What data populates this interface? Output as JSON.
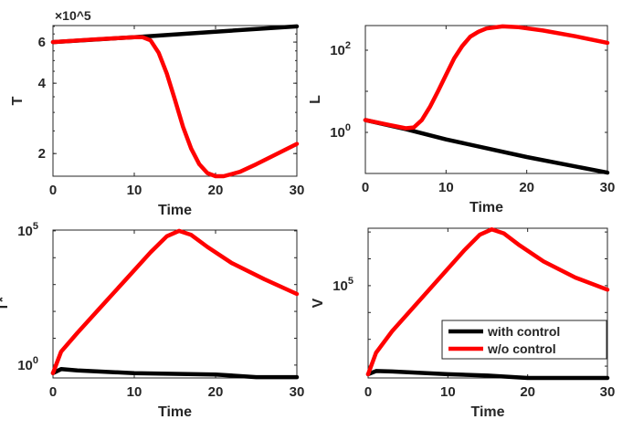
{
  "chart_data": [
    {
      "type": "line",
      "ylabel": "T",
      "xlabel": "Time",
      "yscale": "linear-log",
      "multiplier": "×10^5",
      "xlim": [
        0,
        30
      ],
      "ylim": [
        1.6,
        7.06
      ],
      "xticks": [
        0,
        10,
        20,
        30
      ],
      "yticks": [
        2,
        4,
        6
      ],
      "ytick_labels": [
        "2",
        "4",
        "6"
      ],
      "series": [
        {
          "name": "with control",
          "color": "#000000",
          "x": [
            0,
            10,
            20,
            30
          ],
          "y": [
            6.0,
            6.3,
            6.65,
            7.0
          ]
        },
        {
          "name": "w/o control",
          "color": "#ff0000",
          "x": [
            0,
            5,
            10,
            11,
            12,
            13,
            14,
            15,
            16,
            17,
            18,
            19,
            20,
            21,
            23,
            25,
            27,
            30
          ],
          "y": [
            6.0,
            6.15,
            6.3,
            6.3,
            6.1,
            5.4,
            4.4,
            3.4,
            2.6,
            2.1,
            1.8,
            1.65,
            1.6,
            1.6,
            1.67,
            1.8,
            1.95,
            2.2
          ]
        }
      ]
    },
    {
      "type": "line",
      "ylabel": "L",
      "xlabel": "Time",
      "yscale": "log",
      "xlim": [
        0,
        30
      ],
      "ylim_log10": [
        -1,
        2.6
      ],
      "xticks": [
        0,
        10,
        20,
        30
      ],
      "yticks_log10": [
        0,
        2
      ],
      "series": [
        {
          "name": "with control",
          "color": "#000000",
          "x": [
            0,
            5,
            10,
            20,
            30
          ],
          "y_log10": [
            0.3,
            0.08,
            -0.17,
            -0.6,
            -0.98
          ]
        },
        {
          "name": "w/o control",
          "color": "#ff0000",
          "x": [
            0,
            3,
            5,
            6,
            7,
            8,
            9,
            10,
            11,
            12,
            13,
            14,
            15,
            17,
            19,
            22,
            26,
            30
          ],
          "y_log10": [
            0.3,
            0.18,
            0.1,
            0.12,
            0.3,
            0.62,
            1.0,
            1.4,
            1.8,
            2.1,
            2.33,
            2.45,
            2.53,
            2.58,
            2.56,
            2.48,
            2.34,
            2.18
          ]
        }
      ]
    },
    {
      "type": "line",
      "ylabel": "T*",
      "xlabel": "Time",
      "yscale": "log",
      "xlim": [
        0,
        30
      ],
      "ylim_log10": [
        -0.48,
        5.03
      ],
      "xticks": [
        0,
        10,
        20,
        30
      ],
      "yticks_log10": [
        0,
        5
      ],
      "series": [
        {
          "name": "with control",
          "color": "#000000",
          "x": [
            0,
            1,
            3,
            10,
            20,
            25,
            30
          ],
          "y_log10": [
            -0.3,
            -0.15,
            -0.2,
            -0.3,
            -0.35,
            -0.45,
            -0.45
          ]
        },
        {
          "name": "w/o control",
          "color": "#ff0000",
          "x": [
            0,
            1,
            3,
            6,
            9,
            12,
            14,
            15.5,
            17,
            19,
            22,
            26,
            30
          ],
          "y_log10": [
            -0.3,
            0.5,
            1.2,
            2.2,
            3.2,
            4.2,
            4.8,
            5.0,
            4.85,
            4.4,
            3.8,
            3.2,
            2.65
          ]
        }
      ]
    },
    {
      "type": "line",
      "ylabel": "V",
      "xlabel": "Time",
      "yscale": "log",
      "xlim": [
        0,
        30
      ],
      "ylim_log10": [
        1.56,
        7.14
      ],
      "xticks": [
        0,
        10,
        20,
        30
      ],
      "yticks_log10": [
        5
      ],
      "legend": {
        "position": "lower-right",
        "entries": [
          "with control",
          "w/o control"
        ]
      },
      "series": [
        {
          "name": "with control",
          "color": "#000000",
          "x": [
            0,
            1,
            3,
            10,
            15,
            20,
            30
          ],
          "y_log10": [
            1.7,
            1.82,
            1.8,
            1.7,
            1.65,
            1.56,
            1.56
          ]
        },
        {
          "name": "w/o control",
          "color": "#ff0000",
          "x": [
            0,
            1,
            3,
            6,
            9,
            12,
            14,
            15.5,
            17,
            19,
            22,
            26,
            30
          ],
          "y_log10": [
            1.7,
            2.5,
            3.3,
            4.3,
            5.3,
            6.3,
            6.9,
            7.1,
            6.95,
            6.5,
            5.9,
            5.3,
            4.85
          ]
        }
      ]
    }
  ]
}
